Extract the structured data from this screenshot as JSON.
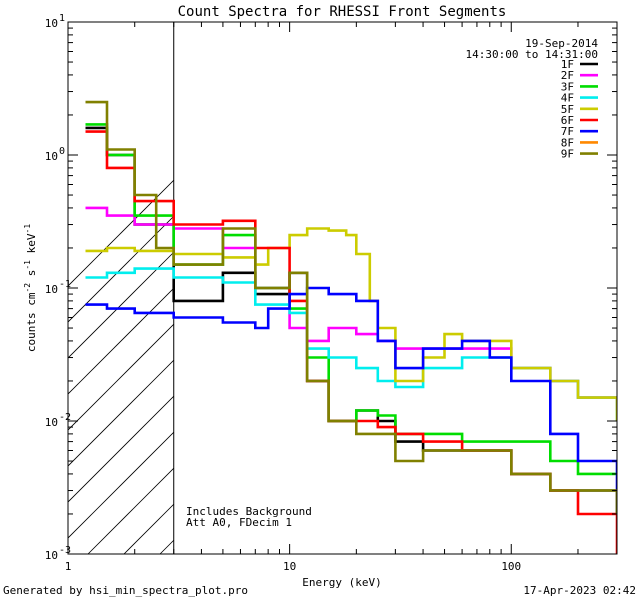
{
  "chart_data": {
    "type": "line",
    "title": "Count Spectra for RHESSI Front Segments",
    "xlabel": "Energy (keV)",
    "ylabel_parts": [
      "counts cm",
      "-2",
      " s",
      "-1",
      " keV",
      "-1"
    ],
    "xscale": "log",
    "yscale": "log",
    "xlim": [
      1,
      300
    ],
    "ylim": [
      0.001,
      10
    ],
    "x_ticks": [
      {
        "value": 1,
        "label": "1"
      },
      {
        "value": 10,
        "label": "10"
      },
      {
        "value": 100,
        "label": "100"
      }
    ],
    "y_ticks": [
      {
        "value": 10,
        "base": "10",
        "exp": "1"
      },
      {
        "value": 1,
        "base": "10",
        "exp": "0"
      },
      {
        "value": 0.1,
        "base": "10",
        "exp": "-1"
      },
      {
        "value": 0.01,
        "base": "10",
        "exp": "-2"
      },
      {
        "value": 0.001,
        "base": "10",
        "exp": "-3"
      }
    ],
    "hatched_region": {
      "x_from": 1,
      "x_to": 3
    },
    "date": "19-Sep-2014",
    "time_range": "14:30:00 to 14:31:00",
    "annotations": [
      "Includes Background",
      "Att A0, FDecim 1"
    ],
    "series": [
      {
        "name": "1F",
        "color": "#000000",
        "x": [
          1.2,
          1.5,
          2.0,
          3.0,
          5.0,
          7.0,
          10.0,
          12.0,
          15.0,
          20.0,
          25.0,
          30.0,
          40.0,
          60.0,
          100.0,
          150.0,
          200.0,
          300.0
        ],
        "y": [
          1.6,
          1.0,
          0.3,
          0.08,
          0.13,
          0.09,
          0.13,
          0.02,
          0.01,
          0.012,
          0.01,
          0.007,
          0.006,
          0.006,
          0.004,
          0.003,
          0.003,
          0.002
        ]
      },
      {
        "name": "2F",
        "color": "#ff00ff",
        "x": [
          1.2,
          1.5,
          2.0,
          3.0,
          5.0,
          7.0,
          10.0,
          12.0,
          15.0,
          20.0,
          25.0,
          30.0,
          40.0,
          60.0,
          100.0,
          150.0,
          200.0,
          300.0
        ],
        "y": [
          0.4,
          0.35,
          0.3,
          0.28,
          0.2,
          0.1,
          0.05,
          0.04,
          0.05,
          0.045,
          0.04,
          0.035,
          0.035,
          0.035,
          0.025,
          0.02,
          0.015,
          0.012
        ]
      },
      {
        "name": "3F",
        "color": "#00dd00",
        "x": [
          1.2,
          1.5,
          2.0,
          3.0,
          5.0,
          7.0,
          10.0,
          12.0,
          15.0,
          20.0,
          25.0,
          30.0,
          40.0,
          60.0,
          100.0,
          150.0,
          200.0,
          300.0
        ],
        "y": [
          1.7,
          1.0,
          0.35,
          0.15,
          0.25,
          0.1,
          0.07,
          0.03,
          0.01,
          0.012,
          0.011,
          0.008,
          0.008,
          0.007,
          0.007,
          0.005,
          0.004,
          0.004
        ]
      },
      {
        "name": "4F",
        "color": "#00eeee",
        "x": [
          1.2,
          1.5,
          2.0,
          3.0,
          5.0,
          7.0,
          10.0,
          12.0,
          15.0,
          20.0,
          25.0,
          30.0,
          40.0,
          60.0,
          100.0,
          150.0,
          200.0,
          300.0
        ],
        "y": [
          0.12,
          0.13,
          0.14,
          0.12,
          0.11,
          0.075,
          0.065,
          0.035,
          0.03,
          0.025,
          0.02,
          0.018,
          0.025,
          0.03,
          0.025,
          0.02,
          0.015,
          0.01
        ]
      },
      {
        "name": "5F",
        "color": "#cccc00",
        "x": [
          1.2,
          1.5,
          2.0,
          3.0,
          5.0,
          7.0,
          8.0,
          10.0,
          12.0,
          15.0,
          18.0,
          20.0,
          23.0,
          25.0,
          30.0,
          40.0,
          50.0,
          60.0,
          100.0,
          150.0,
          200.0,
          300.0
        ],
        "y": [
          0.19,
          0.2,
          0.19,
          0.18,
          0.17,
          0.15,
          0.2,
          0.25,
          0.28,
          0.27,
          0.25,
          0.18,
          0.08,
          0.05,
          0.02,
          0.03,
          0.045,
          0.04,
          0.025,
          0.02,
          0.015,
          0.01
        ]
      },
      {
        "name": "6F",
        "color": "#ff0000",
        "x": [
          1.2,
          1.5,
          2.0,
          3.0,
          5.0,
          7.0,
          10.0,
          12.0,
          15.0,
          20.0,
          25.0,
          30.0,
          40.0,
          60.0,
          100.0,
          150.0,
          200.0,
          300.0
        ],
        "y": [
          1.5,
          0.8,
          0.45,
          0.3,
          0.32,
          0.2,
          0.08,
          0.02,
          0.01,
          0.01,
          0.009,
          0.008,
          0.007,
          0.006,
          0.004,
          0.003,
          0.002,
          0.001
        ]
      },
      {
        "name": "7F",
        "color": "#0000ff",
        "x": [
          1.2,
          1.5,
          2.0,
          3.0,
          5.0,
          7.0,
          8.0,
          10.0,
          12.0,
          15.0,
          20.0,
          25.0,
          30.0,
          40.0,
          60.0,
          80.0,
          100.0,
          150.0,
          200.0,
          300.0
        ],
        "y": [
          0.075,
          0.07,
          0.065,
          0.06,
          0.055,
          0.05,
          0.07,
          0.09,
          0.1,
          0.09,
          0.08,
          0.04,
          0.025,
          0.035,
          0.04,
          0.03,
          0.02,
          0.008,
          0.005,
          0.003
        ]
      },
      {
        "name": "8F",
        "color": "#ff8800",
        "x": [],
        "y": []
      },
      {
        "name": "9F",
        "color": "#808000",
        "x": [
          1.2,
          1.5,
          2.0,
          2.5,
          3.0,
          5.0,
          7.0,
          10.0,
          12.0,
          15.0,
          20.0,
          25.0,
          30.0,
          40.0,
          60.0,
          100.0,
          150.0,
          200.0,
          300.0
        ],
        "y": [
          2.5,
          1.1,
          0.5,
          0.2,
          0.15,
          0.28,
          0.1,
          0.13,
          0.02,
          0.01,
          0.008,
          0.008,
          0.005,
          0.006,
          0.006,
          0.004,
          0.003,
          0.003,
          0.002
        ]
      }
    ]
  },
  "footer": {
    "generated_by": "Generated by hsi_min_spectra_plot.pro",
    "timestamp": "17-Apr-2023 02:42"
  }
}
